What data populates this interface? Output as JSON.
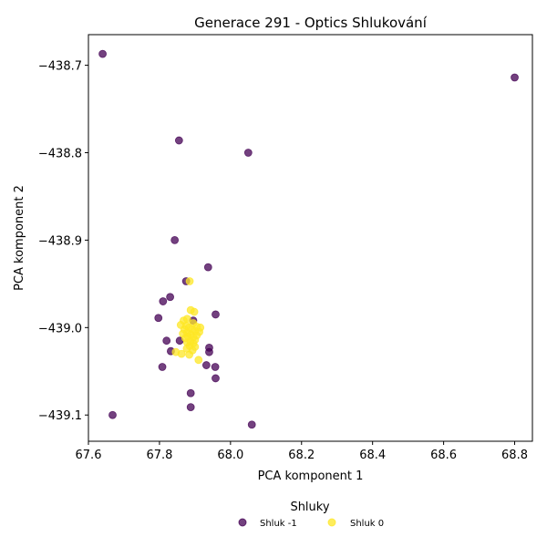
{
  "chart_data": {
    "type": "scatter",
    "title": "Generace 291 - Optics Shlukování",
    "xlabel": "PCA komponent 1",
    "ylabel": "PCA komponent 2",
    "xlim": [
      67.6,
      68.85
    ],
    "ylim": [
      -439.13,
      -438.665
    ],
    "x_ticks": [
      67.6,
      67.8,
      68.0,
      68.2,
      68.4,
      68.6,
      68.8
    ],
    "x_tick_labels": [
      "67.6",
      "67.8",
      "68.0",
      "68.2",
      "68.4",
      "68.6",
      "68.8"
    ],
    "y_ticks": [
      -438.7,
      -438.8,
      -438.9,
      -439.0,
      -439.1
    ],
    "y_tick_labels": [
      "−438.7",
      "−438.8",
      "−438.9",
      "−439.0",
      "−439.1"
    ],
    "grid": false,
    "legend": {
      "title": "Shluky",
      "placement": "bottom-center"
    },
    "series": [
      {
        "name": "Shluk -1",
        "color": "#440154",
        "points": [
          [
            67.64,
            -438.687
          ],
          [
            68.8,
            -438.714
          ],
          [
            67.855,
            -438.786
          ],
          [
            68.05,
            -438.8
          ],
          [
            67.843,
            -438.9
          ],
          [
            67.937,
            -438.931
          ],
          [
            67.875,
            -438.947
          ],
          [
            67.81,
            -438.97
          ],
          [
            67.83,
            -438.965
          ],
          [
            67.958,
            -438.985
          ],
          [
            67.797,
            -438.989
          ],
          [
            67.895,
            -438.992
          ],
          [
            67.82,
            -439.015
          ],
          [
            67.857,
            -439.015
          ],
          [
            67.94,
            -439.023
          ],
          [
            67.832,
            -439.027
          ],
          [
            67.94,
            -439.028
          ],
          [
            67.932,
            -439.043
          ],
          [
            67.808,
            -439.045
          ],
          [
            67.957,
            -439.045
          ],
          [
            67.958,
            -439.058
          ],
          [
            67.888,
            -439.075
          ],
          [
            67.888,
            -439.091
          ],
          [
            67.668,
            -439.1
          ],
          [
            68.06,
            -439.111
          ]
        ]
      },
      {
        "name": "Shluk 0",
        "color": "#fde725",
        "points": [
          [
            67.885,
            -438.947
          ],
          [
            67.888,
            -438.98
          ],
          [
            67.898,
            -438.982
          ],
          [
            67.878,
            -438.99
          ],
          [
            67.868,
            -438.992
          ],
          [
            67.895,
            -438.995
          ],
          [
            67.86,
            -438.997
          ],
          [
            67.875,
            -438.998
          ],
          [
            67.905,
            -438.999
          ],
          [
            67.883,
            -439.0
          ],
          [
            67.915,
            -439.0
          ],
          [
            67.87,
            -439.002
          ],
          [
            67.892,
            -439.002
          ],
          [
            67.9,
            -439.004
          ],
          [
            67.912,
            -439.005
          ],
          [
            67.878,
            -439.006
          ],
          [
            67.866,
            -439.007
          ],
          [
            67.888,
            -439.008
          ],
          [
            67.905,
            -439.009
          ],
          [
            67.88,
            -439.01
          ],
          [
            67.895,
            -439.011
          ],
          [
            67.873,
            -439.012
          ],
          [
            67.9,
            -439.014
          ],
          [
            67.887,
            -439.016
          ],
          [
            67.878,
            -439.017
          ],
          [
            67.895,
            -439.018
          ],
          [
            67.885,
            -439.021
          ],
          [
            67.9,
            -439.022
          ],
          [
            67.877,
            -439.024
          ],
          [
            67.893,
            -439.026
          ],
          [
            67.846,
            -439.028
          ],
          [
            67.862,
            -439.03
          ],
          [
            67.884,
            -439.031
          ],
          [
            67.91,
            -439.037
          ]
        ]
      }
    ]
  }
}
